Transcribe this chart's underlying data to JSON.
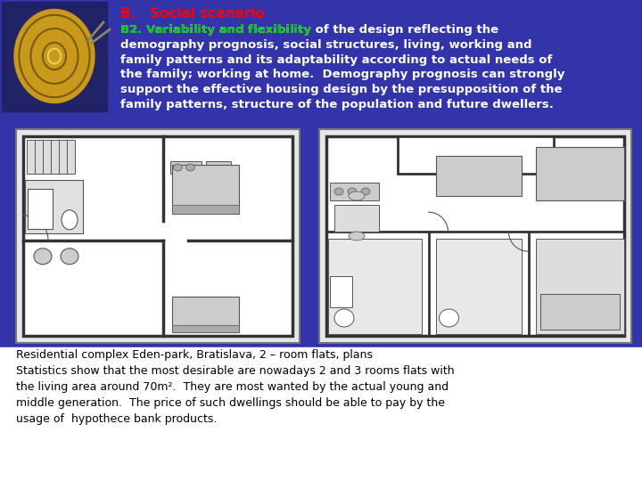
{
  "background_color": "#3333aa",
  "bottom_bg": "#ffffff",
  "title_text": "B.   Social scenario",
  "title_color": "#ff0000",
  "bold_text": "B2. Variability and flexibility",
  "bold_color": "#00cc00",
  "para1_text": " of the design reflecting the\ndemography prognosis, social structures, living, working and\nfamily patterns and its adaptability according to actual needs of\nthe family; working at home.  Demography prognosis can strongly\nsupport the effective housing design by the presupposition of the\nfamily patterns, structure of the population and future dwellers.",
  "para1_color": "#ffffff",
  "caption_text": "Residential complex Eden-park, Bratislava, 2 – room flats, plans",
  "caption_color": "#000000",
  "stats_text": "Statistics show that the most desirable are nowadays 2 and 3 rooms flats with\nthe living area around 70m².  They are most wanted by the actual young and\nmiddle generation.  The price of such dwellings should be able to pay by the\nusage of  hypothece bank products.",
  "stats_color": "#000000",
  "font_size_title": 11,
  "font_size_body": 9.5,
  "font_size_caption": 9,
  "font_size_stats": 9
}
